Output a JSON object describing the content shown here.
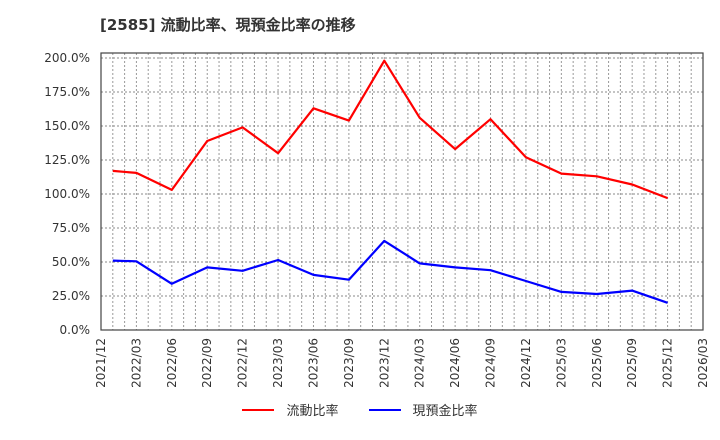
{
  "title": "[2585]  流動比率、現預金比率の推移",
  "legend": [
    {
      "label": "流動比率",
      "color": "#ff0000"
    },
    {
      "label": "現預金比率",
      "color": "#0000ff"
    }
  ],
  "chart_data": {
    "type": "line",
    "title": "[2585]  流動比率、現預金比率の推移",
    "xlabel": "",
    "ylabel": "",
    "ylim": [
      0,
      200
    ],
    "grid": true,
    "legend_position": "bottom",
    "y_ticks": [
      "0.0%",
      "25.0%",
      "50.0%",
      "75.0%",
      "100.0%",
      "125.0%",
      "150.0%",
      "175.0%",
      "200.0%"
    ],
    "x_ticks": [
      "2021/12",
      "2022/03",
      "2022/06",
      "2022/09",
      "2022/12",
      "2023/03",
      "2023/06",
      "2023/09",
      "2023/12",
      "2024/03",
      "2024/06",
      "2024/09",
      "2024/12",
      "2025/03",
      "2025/06",
      "2025/09",
      "2025/12",
      "2026/03"
    ],
    "x": [
      "2022/01",
      "2022/03",
      "2022/06",
      "2022/09",
      "2022/12",
      "2023/03",
      "2023/06",
      "2023/09",
      "2023/12",
      "2024/03",
      "2024/06",
      "2024/09",
      "2024/12",
      "2025/03",
      "2025/06",
      "2025/09",
      "2025/12"
    ],
    "series": [
      {
        "name": "流動比率",
        "color": "#ff0000",
        "values": [
          117,
          115.5,
          103,
          139,
          149,
          130,
          163,
          154,
          198,
          156,
          133,
          155,
          127,
          115,
          113,
          107,
          97
        ]
      },
      {
        "name": "現預金比率",
        "color": "#0000ff",
        "values": [
          51,
          50.5,
          34,
          46,
          43.5,
          51.5,
          40.5,
          37,
          65.5,
          49,
          46,
          44,
          36,
          28,
          26.5,
          29,
          20
        ]
      }
    ]
  }
}
